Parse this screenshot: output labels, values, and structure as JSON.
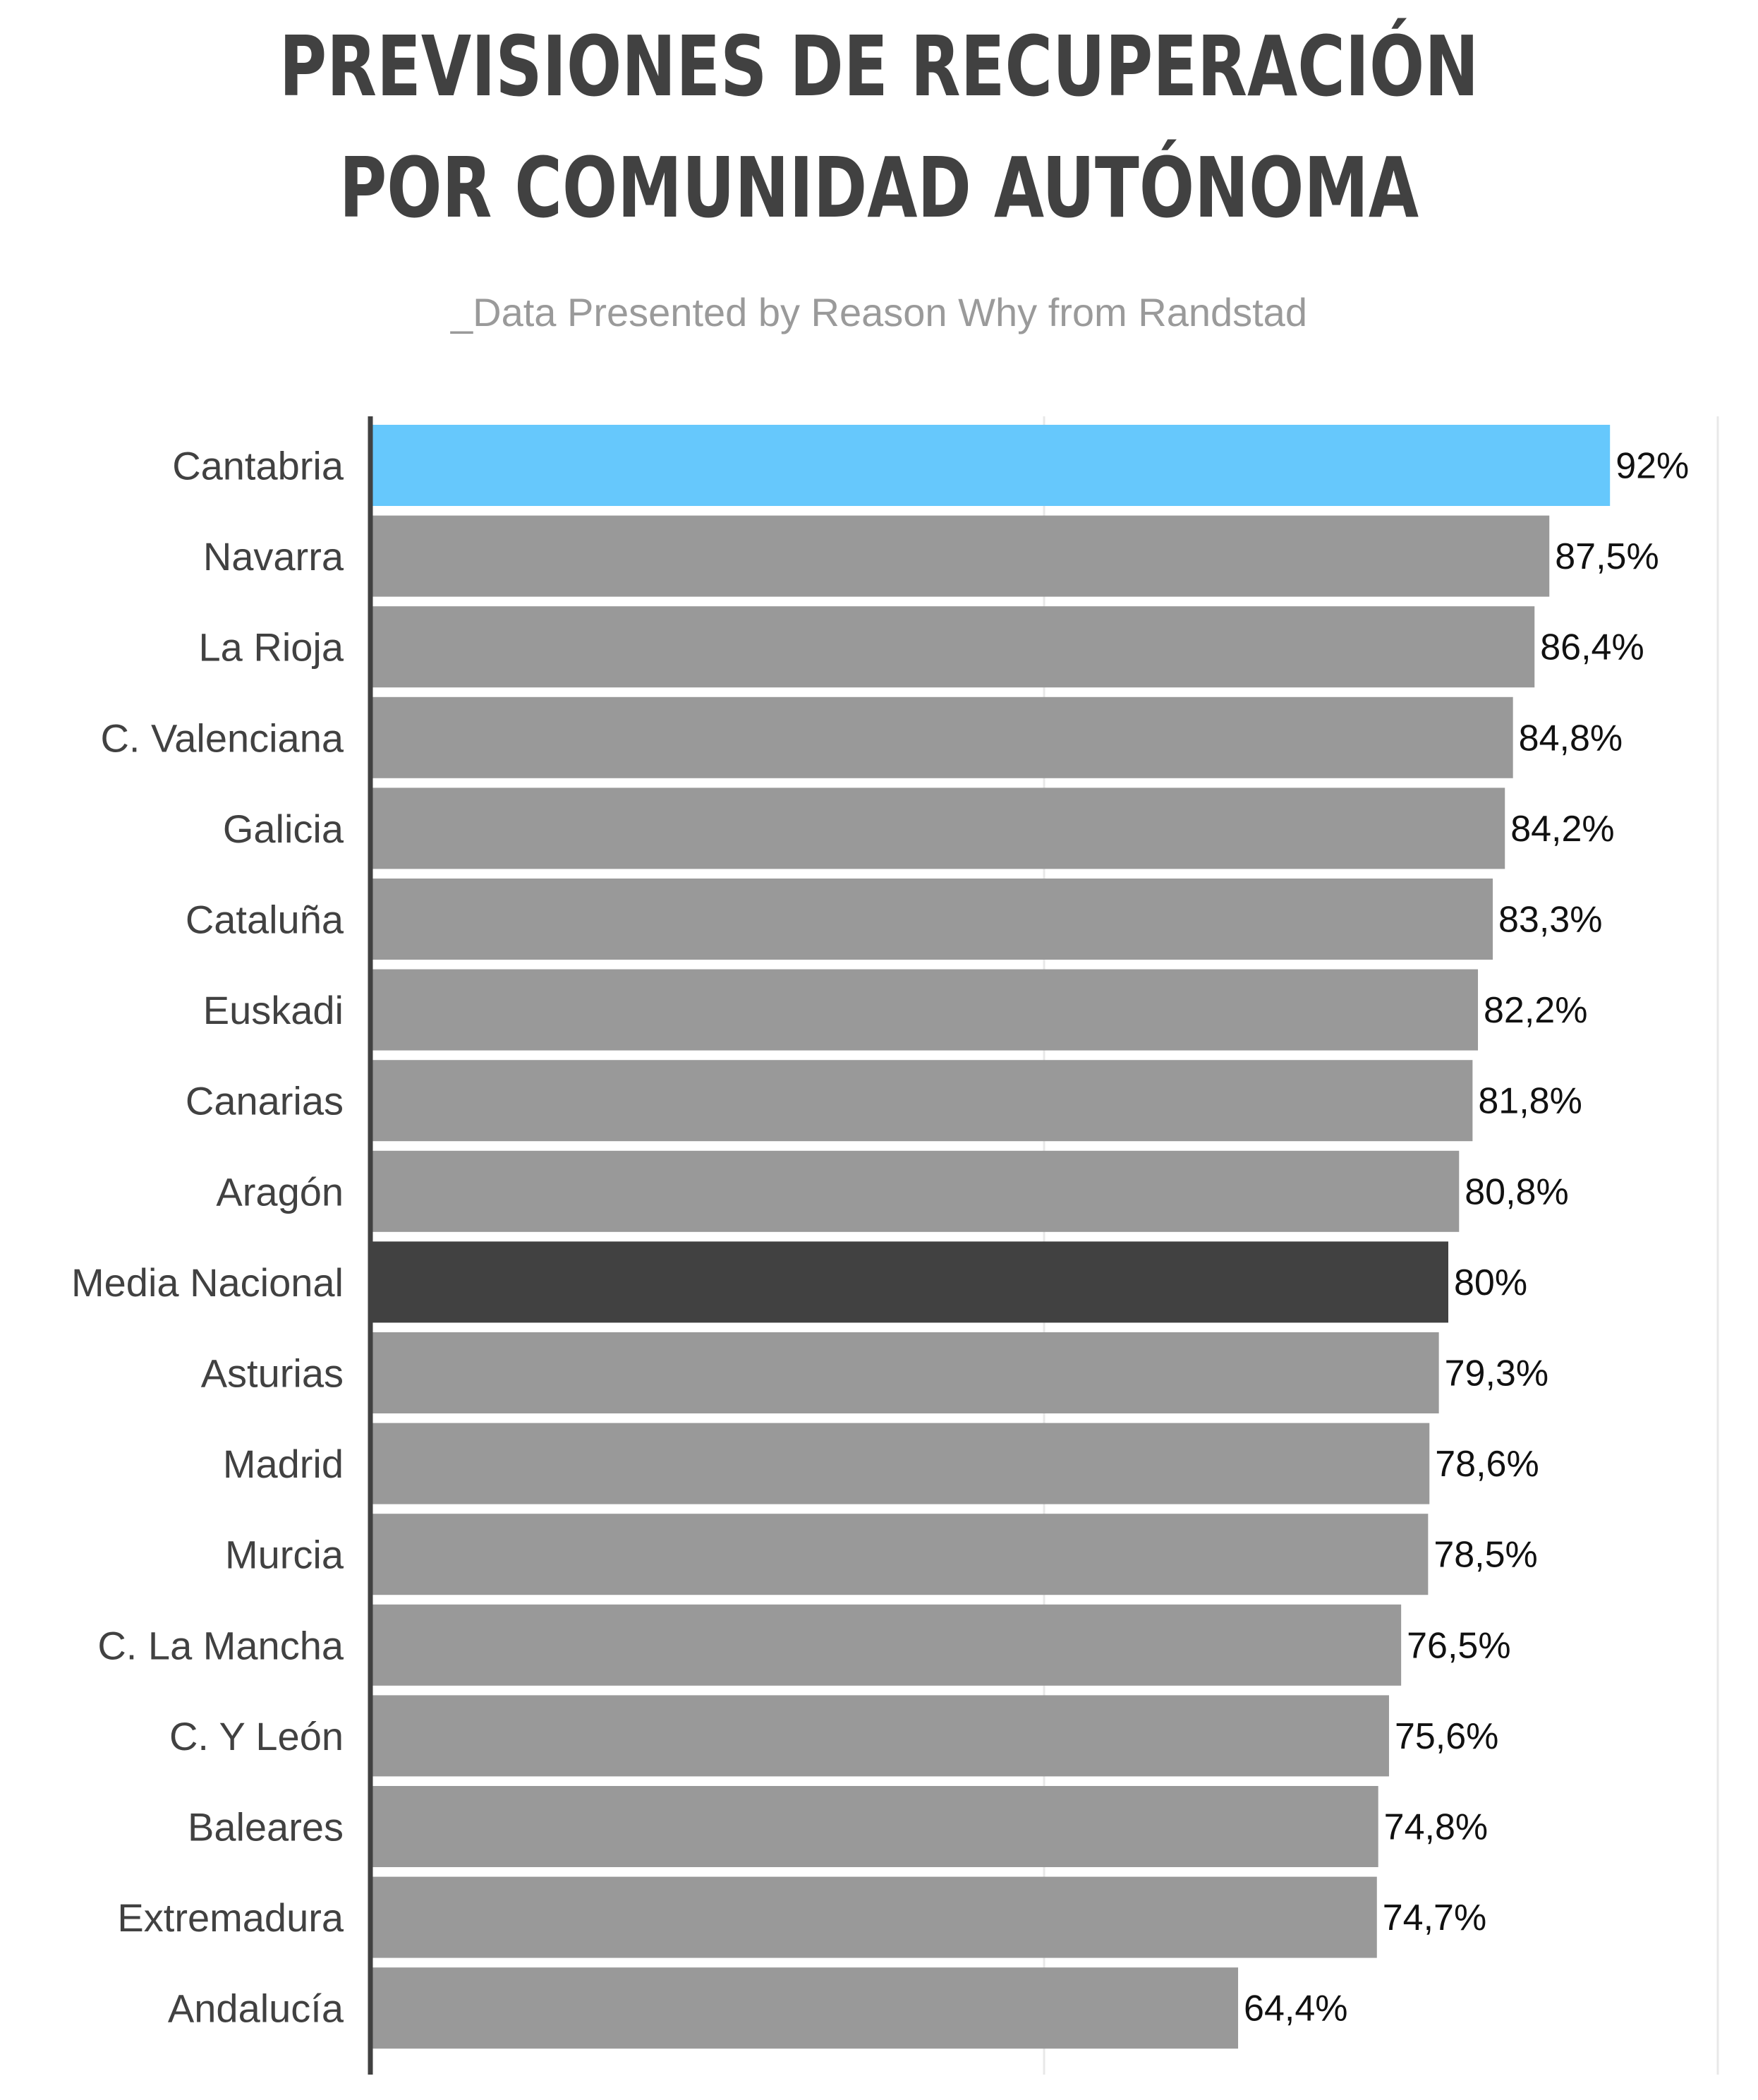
{
  "chart_data": {
    "type": "bar",
    "orientation": "horizontal",
    "title": "PREVISIONES DE RECUPERACIÓN POR COMUNIDAD AUTÓNOMA",
    "subtitle": "_Data Presented by Reason Why from Randstad",
    "categories": [
      "Cantabria",
      "Navarra",
      "La Rioja",
      "C. Valenciana",
      "Galicia",
      "Cataluña",
      "Euskadi",
      "Canarias",
      "Aragón",
      "Media Nacional",
      "Asturias",
      "Madrid",
      "Murcia",
      "C. La Mancha",
      "C. Y León",
      "Baleares",
      "Extremadura",
      "Andalucía"
    ],
    "values": [
      92,
      87.5,
      86.4,
      84.8,
      84.2,
      83.3,
      82.2,
      81.8,
      80.8,
      80,
      79.3,
      78.6,
      78.5,
      76.5,
      75.6,
      74.8,
      74.7,
      64.4
    ],
    "value_labels": [
      "92%",
      "87,5%",
      "86,4%",
      "84,8%",
      "84,2%",
      "83,3%",
      "82,2%",
      "81,8%",
      "80,8%",
      "80%",
      "79,3%",
      "78,6%",
      "78,5%",
      "76,5%",
      "75,6%",
      "74,8%",
      "74,7%",
      "64,4%"
    ],
    "xlim": [
      0,
      100
    ],
    "gridlines": [
      50,
      100
    ],
    "grid": true,
    "legend": "none",
    "colors": {
      "default_bar": "#999999",
      "highlight_bar": "#66c8fc",
      "average_bar": "#414141",
      "axis": "#414141",
      "grid": "#e8e8e8"
    },
    "highlight_index": 0,
    "average_index": 9
  }
}
